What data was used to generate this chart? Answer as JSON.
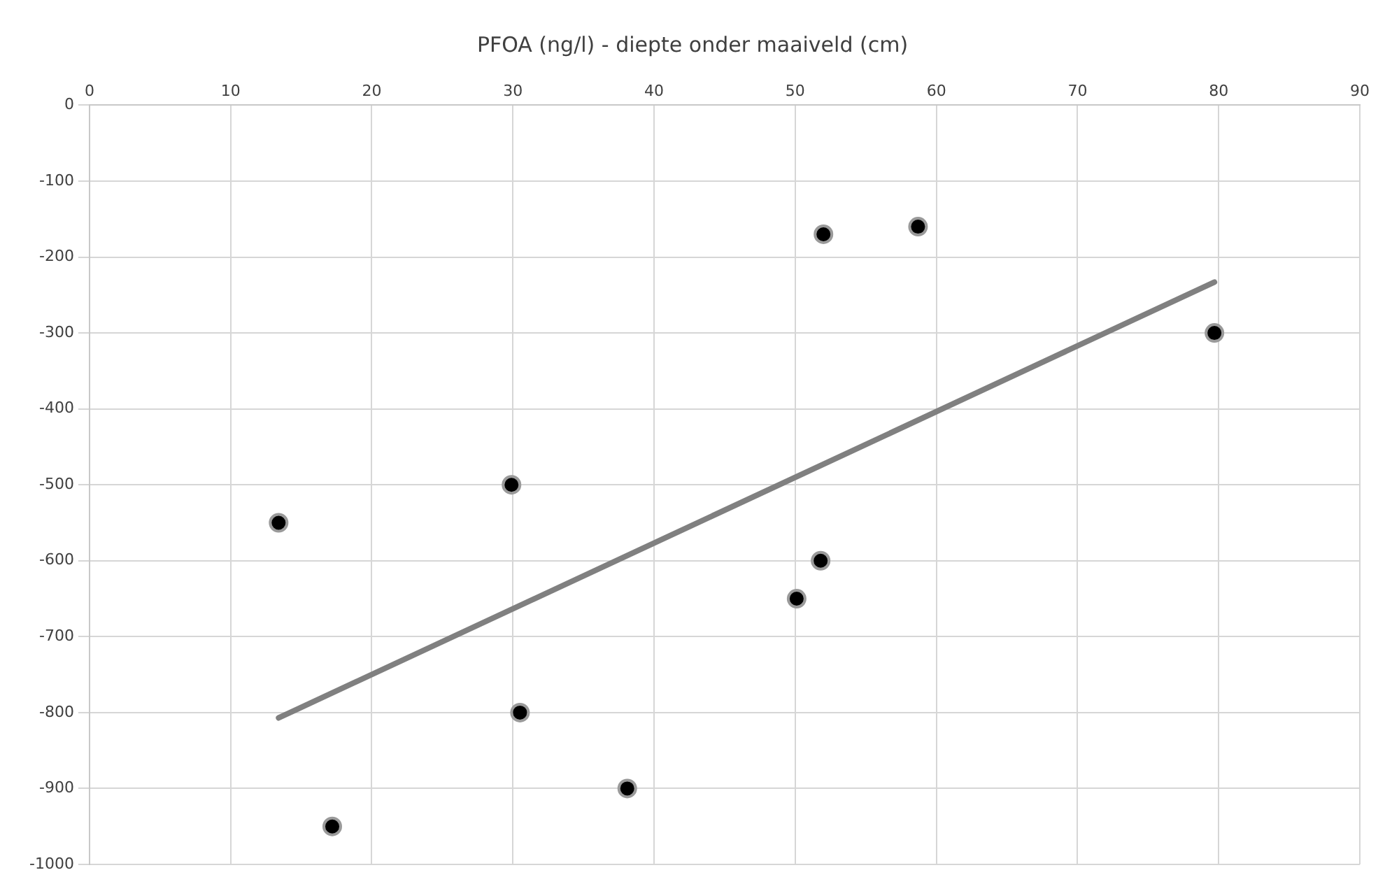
{
  "chart_data": {
    "type": "scatter",
    "title": "PFOA (ng/l) - diepte onder maaiveld (cm)",
    "xlim": [
      0,
      90
    ],
    "xticks": [
      0,
      10,
      20,
      30,
      40,
      50,
      60,
      70,
      80,
      90
    ],
    "ylim": [
      -1000,
      0
    ],
    "yticks": [
      -1000,
      -900,
      -800,
      -700,
      -600,
      -500,
      -400,
      -300,
      -200,
      -100,
      0
    ],
    "grid": true,
    "legend": false,
    "marker": "circle",
    "series": [
      {
        "type": "scatter",
        "color": "#000000",
        "x": [
          13.4,
          17.2,
          29.9,
          30.5,
          38.1,
          50.1,
          51.8,
          52.0,
          58.7,
          79.7
        ],
        "values": [
          -550,
          -950,
          -500,
          -800,
          -900,
          -650,
          -600,
          -170,
          -160,
          -300
        ]
      },
      {
        "type": "line",
        "color": "#808080",
        "marker": "none",
        "x": [
          13.4,
          79.7
        ],
        "values": [
          -807,
          -233
        ]
      }
    ]
  }
}
